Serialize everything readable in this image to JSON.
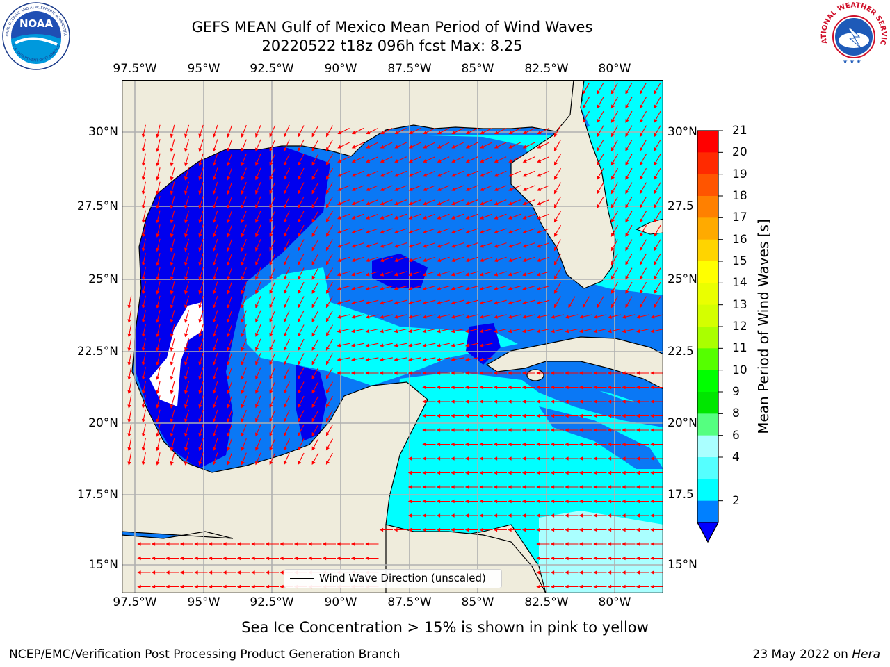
{
  "title_line1": "GEFS MEAN Gulf of Mexico Mean Period of Wind Waves",
  "title_line2": "20220522 t18z 096h fcst   Max: 8.25",
  "lon_ticks": [
    "97.5°W",
    "95°W",
    "92.5°W",
    "90°W",
    "87.5°W",
    "85°W",
    "82.5°W",
    "80°W"
  ],
  "lat_ticks_left": [
    "30°N",
    "27.5°N",
    "25°N",
    "22.5°N",
    "20°N",
    "17.5°N",
    "15°N"
  ],
  "lat_ticks_right": [
    "30°N",
    "27.5",
    "25°N",
    "22.5",
    "20°N",
    "17.5",
    "15°N"
  ],
  "legend_label": "Wind Wave Direction (unscaled)",
  "colorbar": {
    "label": "Mean Period of Wind Waves [s]",
    "ticks": [
      "21",
      "20",
      "19",
      "18",
      "17",
      "16",
      "15",
      "14",
      "13",
      "12",
      "11",
      "10",
      "9",
      "8",
      "6",
      "4",
      "2"
    ],
    "colors": [
      "#ff0000",
      "#ff2a00",
      "#ff5500",
      "#ff8000",
      "#ffaa00",
      "#ffd400",
      "#ffff00",
      "#eaff00",
      "#d4ff00",
      "#aaff00",
      "#55ff00",
      "#00ff00",
      "#00e600",
      "#55ff80",
      "#aaffff",
      "#55ffff",
      "#00ffff",
      "#0080ff"
    ],
    "under_color": "#0000ff"
  },
  "palette": {
    "land": "#efecdc",
    "deep_blue": "#0000ee",
    "mid_blue": "#0a78f5",
    "cyan": "#00ffff",
    "light_cyan": "#aaffff",
    "arrow": "#ff0000",
    "grid": "#b0b0b0"
  },
  "sea_ice_note": "Sea Ice Concentration > 15% is shown in pink to yellow",
  "footer_left": "NCEP/EMC/Verification Post Processing Product Generation Branch",
  "footer_date": "23 May 2022 on",
  "footer_machine": "Hera",
  "logos": {
    "noaa_text": "NOAA",
    "noaa_ring_top": "NATIONAL OCEANIC AND ATMOSPHERIC ADMINISTRATION",
    "noaa_ring_bottom": "U.S. DEPARTMENT OF COMMERCE",
    "nws_ring": "NATIONAL WEATHER SERVICE"
  }
}
